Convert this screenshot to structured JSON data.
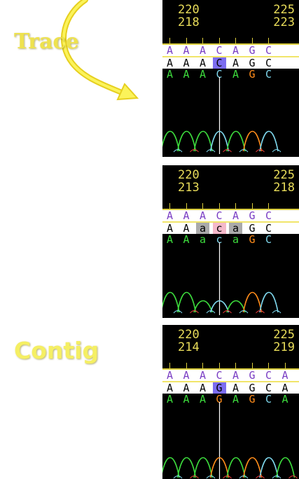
{
  "labels": {
    "trace": "Trace",
    "contig": "Contig"
  },
  "colors": {
    "label_yellow": "#f5ef63",
    "coordinate_yellow": "#e9dd5a",
    "consensus_purple": "#7a3ec4",
    "base_A_green": "#3ddc3d",
    "base_C_cyan": "#7fd8ee",
    "base_G_orange": "#ff8c1a",
    "highlight_blue": "#7b6cf0",
    "highlight_pink": "#f4b8c9",
    "highlight_grey": "#aaaaaa"
  },
  "panels": [
    {
      "coord_top_left": "220",
      "coord_top_right": "225",
      "coord_bottom_left": "218",
      "coord_bottom_right": "223",
      "consensus": [
        "A",
        "A",
        "A",
        "C",
        "A",
        "G",
        "C"
      ],
      "read": [
        "A",
        "A",
        "A",
        "C",
        "A",
        "G",
        "C"
      ],
      "trace_calls": [
        "A",
        "A",
        "A",
        "C",
        "A",
        "G",
        "C"
      ],
      "read_highlights": [
        "none",
        "none",
        "none",
        "blue",
        "none",
        "none",
        "none"
      ]
    },
    {
      "coord_top_left": "220",
      "coord_top_right": "225",
      "coord_bottom_left": "213",
      "coord_bottom_right": "218",
      "consensus": [
        "A",
        "A",
        "A",
        "C",
        "A",
        "G",
        "C"
      ],
      "read": [
        "A",
        "A",
        "a",
        "c",
        "a",
        "G",
        "C"
      ],
      "trace_calls": [
        "A",
        "A",
        "a",
        "c",
        "a",
        "G",
        "C"
      ],
      "read_highlights": [
        "none",
        "none",
        "grey",
        "pink",
        "grey",
        "none",
        "none"
      ]
    },
    {
      "coord_top_left": "220",
      "coord_top_right": "225",
      "coord_bottom_left": "214",
      "coord_bottom_right": "219",
      "consensus": [
        "A",
        "A",
        "A",
        "C",
        "A",
        "G",
        "C",
        "A"
      ],
      "read": [
        "A",
        "A",
        "A",
        "G",
        "A",
        "G",
        "C",
        "A"
      ],
      "trace_calls": [
        "A",
        "A",
        "A",
        "G",
        "A",
        "G",
        "C",
        "A"
      ],
      "read_highlights": [
        "none",
        "none",
        "none",
        "blue",
        "none",
        "none",
        "none",
        "none"
      ]
    }
  ]
}
